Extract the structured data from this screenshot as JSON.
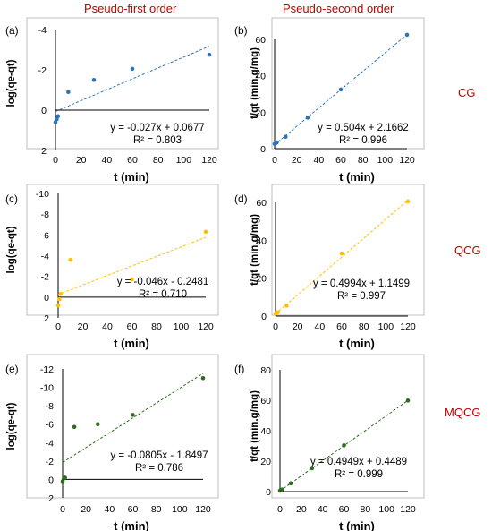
{
  "figure": {
    "column_headers": [
      "Pseudo-first order",
      "Pseudo-second order"
    ],
    "row_labels": [
      "CG",
      "QCG",
      "MQCG"
    ]
  },
  "chart_data": [
    {
      "type": "scatter",
      "panel": "(a)",
      "xlabel": "t (min)",
      "ylabel": "log(qe-qt)",
      "xlim": [
        0,
        120
      ],
      "ylim": [
        -4,
        2
      ],
      "y_inverted": true,
      "xticks": [
        0,
        20,
        40,
        60,
        80,
        100,
        120
      ],
      "yticks": [
        -4,
        -2,
        0,
        2
      ],
      "point_color": "#2e75b6",
      "trendline": {
        "slope": -0.027,
        "intercept": 0.0677,
        "color": "#2e75b6",
        "style": "dashed"
      },
      "series": [
        {
          "x": [
            0,
            1,
            2,
            10,
            30,
            60,
            120
          ],
          "y": [
            0.6,
            0.45,
            0.3,
            -0.9,
            -1.5,
            -2.05,
            -2.75
          ]
        }
      ],
      "equation": "y = -0.027x + 0.0677",
      "r2": "R² = 0.803"
    },
    {
      "type": "scatter",
      "panel": "(b)",
      "xlabel": "t (min)",
      "ylabel": "t/qt (min.g/mg)",
      "xlim": [
        0,
        120
      ],
      "ylim": [
        0,
        60
      ],
      "y_inverted": false,
      "xticks": [
        0,
        20,
        40,
        60,
        80,
        100,
        120
      ],
      "yticks": [
        0,
        20,
        40,
        60
      ],
      "point_color": "#2e75b6",
      "trendline": {
        "slope": 0.504,
        "intercept": 2.1662,
        "color": "#2e75b6",
        "style": "dashed"
      },
      "series": [
        {
          "x": [
            0,
            1,
            2,
            10,
            30,
            60,
            120
          ],
          "y": [
            2.6,
            3.0,
            3.4,
            6.5,
            17,
            32.5,
            62.5
          ]
        }
      ],
      "equation": "y = 0.504x + 2.1662",
      "r2": "R² = 0.996"
    },
    {
      "type": "scatter",
      "panel": "(c)",
      "xlabel": "t (min)",
      "ylabel": "log(qe-qt)",
      "xlim": [
        0,
        120
      ],
      "ylim": [
        -10,
        2
      ],
      "y_inverted": true,
      "xticks": [
        0,
        20,
        40,
        60,
        80,
        100,
        120
      ],
      "yticks": [
        -10,
        -8,
        -6,
        -4,
        -2,
        0,
        2
      ],
      "point_color": "#ffc000",
      "trendline": {
        "slope": -0.046,
        "intercept": -0.2481,
        "color": "#ffc000",
        "style": "dashed"
      },
      "series": [
        {
          "x": [
            0,
            1,
            2,
            10,
            60,
            120
          ],
          "y": [
            0.8,
            0.2,
            -0.3,
            -3.6,
            -1.7,
            -6.3
          ]
        }
      ],
      "equation": "y = -0.046x - 0.2481",
      "r2": "R² = 0.710"
    },
    {
      "type": "scatter",
      "panel": "(d)",
      "xlabel": "t (min)",
      "ylabel": "t/qt (min.g/mg)",
      "xlim": [
        0,
        120
      ],
      "ylim": [
        0,
        60
      ],
      "y_inverted": false,
      "xticks": [
        0,
        20,
        40,
        60,
        80,
        100,
        120
      ],
      "yticks": [
        0,
        20,
        40,
        60
      ],
      "point_color": "#ffc000",
      "trendline": {
        "slope": 0.4994,
        "intercept": 1.1499,
        "color": "#ffc000",
        "style": "dashed"
      },
      "series": [
        {
          "x": [
            0,
            1,
            2,
            10,
            60,
            120
          ],
          "y": [
            1.2,
            1.7,
            2.0,
            5.5,
            33,
            60.5
          ]
        }
      ],
      "equation": "y = 0.4994x + 1.1499",
      "r2": "R² = 0.997"
    },
    {
      "type": "scatter",
      "panel": "(e)",
      "xlabel": "t (min)",
      "ylabel": "log(qe-qt)",
      "xlim": [
        0,
        120
      ],
      "ylim": [
        -12,
        2
      ],
      "y_inverted": true,
      "xticks": [
        0,
        20,
        40,
        60,
        80,
        100,
        120
      ],
      "yticks": [
        -12,
        -10,
        -8,
        -6,
        -4,
        -2,
        0,
        2
      ],
      "point_color": "#2e6b1f",
      "trendline": {
        "slope": -0.0805,
        "intercept": -1.8497,
        "color": "#2e6b1f",
        "style": "dashed"
      },
      "series": [
        {
          "x": [
            0,
            1,
            2,
            10,
            30,
            60,
            120
          ],
          "y": [
            0.2,
            -0.1,
            -0.2,
            -5.7,
            -6.0,
            -7.0,
            -11.0
          ]
        }
      ],
      "equation": "y = -0.0805x - 1.8497",
      "r2": "R² = 0.786"
    },
    {
      "type": "scatter",
      "panel": "(f)",
      "xlabel": "t (min)",
      "ylabel": "t/qt (min.g/mg)",
      "xlim": [
        0,
        120
      ],
      "ylim": [
        0,
        80
      ],
      "y_inverted": false,
      "xticks": [
        0,
        20,
        40,
        60,
        80,
        100,
        120
      ],
      "yticks": [
        0,
        20,
        40,
        60,
        80
      ],
      "point_color": "#2e6b1f",
      "trendline": {
        "slope": 0.4949,
        "intercept": 0.4489,
        "color": "#2e6b1f",
        "style": "dashed"
      },
      "series": [
        {
          "x": [
            0,
            1,
            2,
            10,
            30,
            60,
            120
          ],
          "y": [
            0.6,
            1.0,
            1.4,
            5.4,
            15.3,
            30.4,
            59.8
          ]
        }
      ],
      "equation": "y = 0.4949x + 0.4489",
      "r2": "R² = 0.999"
    }
  ]
}
